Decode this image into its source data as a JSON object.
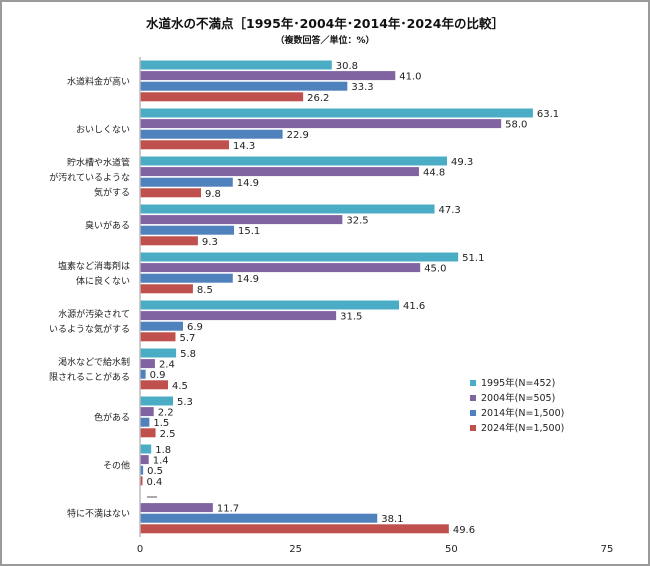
{
  "chart_data": {
    "type": "bar",
    "orientation": "horizontal",
    "title": "水道水の不満点［1995年･2004年･2014年･2024年の比較］",
    "subtitle": "（複数回答／単位：%）",
    "categories": [
      [
        "水道料金が高い"
      ],
      [
        "おいしくない"
      ],
      [
        "貯水槽や水道管",
        "が汚れているような",
        "気がする"
      ],
      [
        "臭いがある"
      ],
      [
        "塩素など消毒剤は",
        "体に良くない"
      ],
      [
        "水源が汚染されて",
        "いるような気がする"
      ],
      [
        "渇水などで給水制",
        "限されることがある"
      ],
      [
        "色がある"
      ],
      [
        "その他"
      ],
      [
        "特に不満はない"
      ]
    ],
    "series": [
      {
        "name": "1995年(N=452)",
        "color": "#4bacc6",
        "values": [
          30.8,
          63.1,
          49.3,
          47.3,
          51.1,
          41.6,
          5.8,
          5.3,
          1.8,
          null
        ]
      },
      {
        "name": "2004年(N=505)",
        "color": "#8064a2",
        "values": [
          41.0,
          58.0,
          44.8,
          32.5,
          45.0,
          31.5,
          2.4,
          2.2,
          1.4,
          11.7
        ]
      },
      {
        "name": "2014年(N=1,500)",
        "color": "#4f81bd",
        "values": [
          33.3,
          22.9,
          14.9,
          15.1,
          14.9,
          6.9,
          0.9,
          1.5,
          0.5,
          38.1
        ]
      },
      {
        "name": "2024年(N=1,500)",
        "color": "#c0504d",
        "values": [
          26.2,
          14.3,
          9.8,
          9.3,
          8.5,
          5.7,
          4.5,
          2.5,
          0.4,
          49.6
        ]
      }
    ],
    "missing_label": "—",
    "xlim": [
      0,
      75
    ],
    "xticks": [
      0,
      25,
      50,
      75
    ],
    "grid": false,
    "legend_position": "right"
  }
}
